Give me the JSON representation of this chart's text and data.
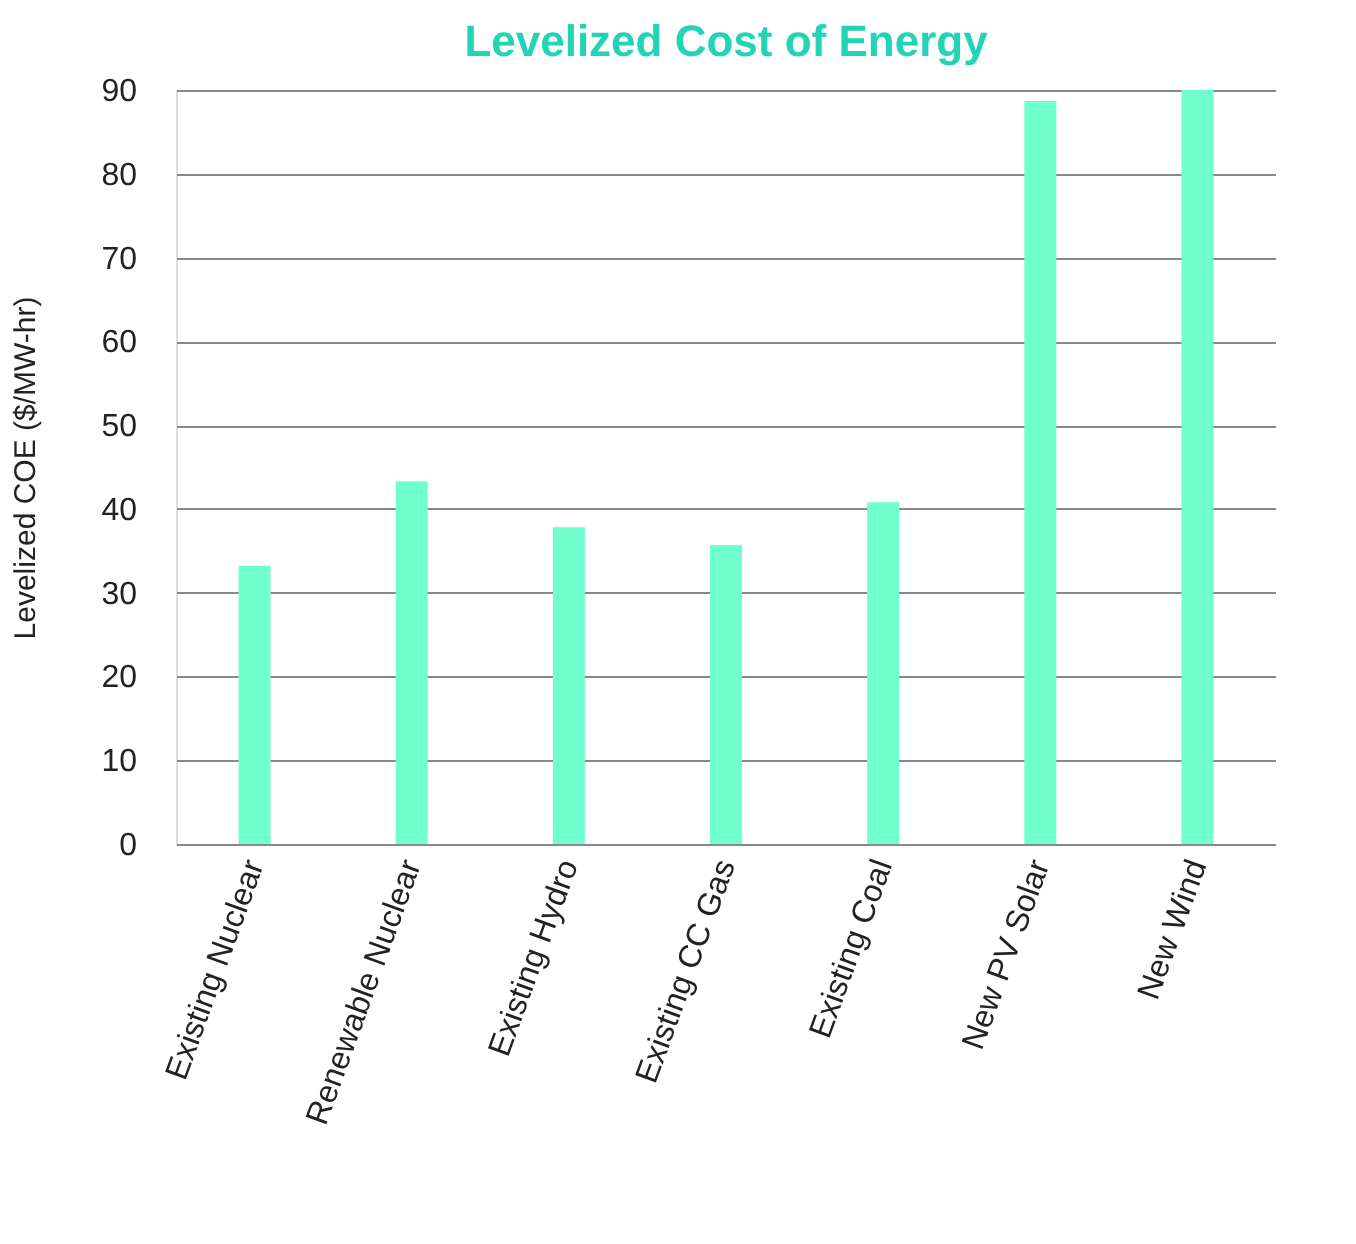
{
  "chart_data": {
    "type": "bar",
    "title": "Levelized Cost of Energy",
    "ylabel": "Levelized COE ($/MW-hr)",
    "categories": [
      "Existing Nuclear",
      "Renewable Nuclear",
      "Existing Hydro",
      "Existing CC Gas",
      "Existing Coal",
      "New PV Solar",
      "New Wind"
    ],
    "values": [
      33.2,
      43.3,
      37.8,
      35.7,
      40.8,
      88.7,
      90
    ],
    "color": "#6fffcc",
    "ylim": [
      0,
      90
    ],
    "yticks": [
      0,
      10,
      20,
      30,
      40,
      50,
      60,
      70,
      80,
      90
    ],
    "grid": "y"
  }
}
